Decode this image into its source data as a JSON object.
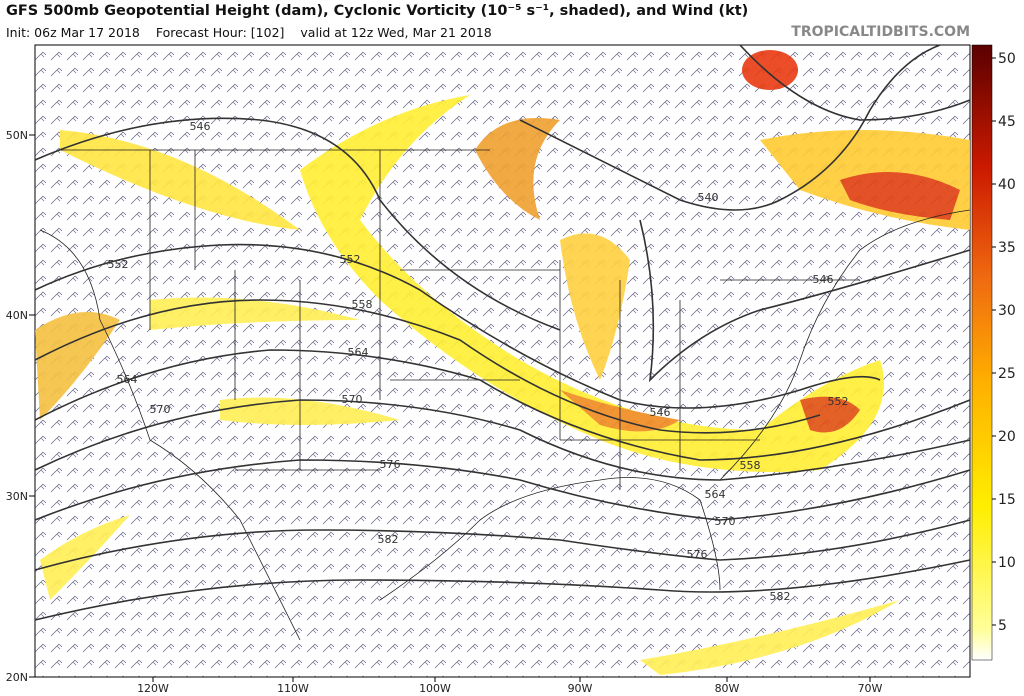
{
  "header": {
    "title": "GFS 500mb Geopotential Height (dam), Cyclonic Vorticity (10⁻⁵ s⁻¹, shaded), and Wind (kt)",
    "init": "Init: 06z Mar 17 2018",
    "forecast_hour": "Forecast Hour: [102]",
    "valid": "valid at 12z Wed, Mar 21 2018",
    "brand": "TROPICALTIDBITS.COM"
  },
  "axes": {
    "latitudes": [
      "50N",
      "40N",
      "30N",
      "20N"
    ],
    "longitudes": [
      "120W",
      "110W",
      "100W",
      "90W",
      "80W",
      "70W"
    ]
  },
  "colorbar": {
    "ticks": [
      5,
      10,
      15,
      20,
      25,
      30,
      35,
      40,
      45,
      50
    ]
  },
  "contour_labels": [
    "546",
    "552",
    "552",
    "558",
    "564",
    "570",
    "576",
    "582",
    "540",
    "546",
    "546",
    "552",
    "558",
    "564",
    "570",
    "576",
    "582",
    "564",
    "570"
  ]
}
